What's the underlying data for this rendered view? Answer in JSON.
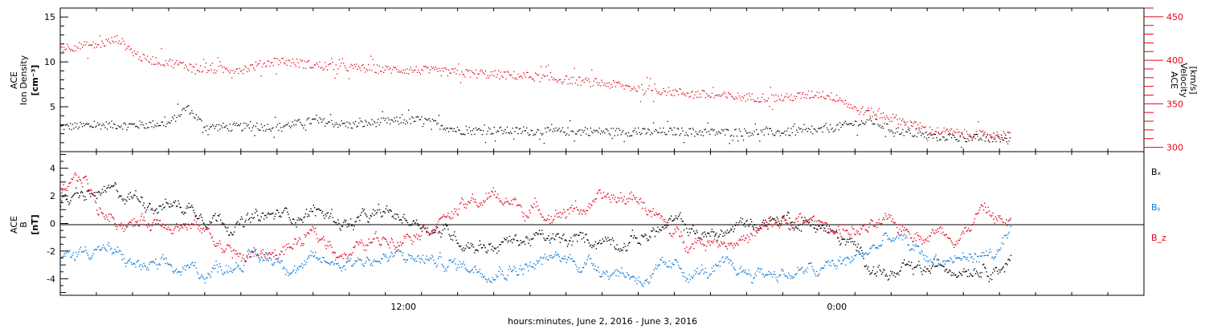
{
  "chart_data": [
    {
      "type": "scatter",
      "ylabel_left": [
        "ACE",
        "Ion Density",
        "[cm⁻³]"
      ],
      "ylabel_right": [
        "ACE",
        "Velocity",
        "[km/s]"
      ],
      "ylim_left": [
        0,
        16
      ],
      "ylim_right": [
        295,
        460
      ],
      "yticks_left": [
        5,
        10,
        15
      ],
      "yticks_right": [
        300,
        350,
        400,
        450
      ],
      "xlabel": "hours:minutes, June  2, 2016 - June  3, 2016",
      "x_tick_labels": [
        "12:00",
        "0:00"
      ],
      "grid": false,
      "series": [
        {
          "name": "",
          "axis": "left",
          "color": "#000000",
          "x_hours": [
            0,
            1,
            2,
            3,
            3.5,
            4,
            5,
            6,
            7,
            8,
            9,
            10,
            11,
            12,
            13,
            14,
            15,
            16,
            17,
            18,
            19,
            20,
            21,
            21.5,
            22,
            22.5,
            23,
            24,
            25,
            26,
            26.3
          ],
          "values": [
            2.8,
            3,
            3,
            3.2,
            5,
            2.8,
            2.8,
            2.8,
            3.5,
            3,
            3.4,
            3.6,
            2.4,
            2.4,
            2.3,
            2.3,
            2.3,
            2.2,
            2.3,
            2.2,
            2.2,
            2.2,
            2.4,
            2.8,
            3.2,
            3.4,
            2.5,
            1.8,
            1.6,
            1.5,
            1.6
          ]
        },
        {
          "name": "",
          "axis": "right",
          "color": "#e8001c",
          "x_hours": [
            0,
            1,
            1.6,
            2,
            2.3,
            3,
            4,
            5,
            6,
            7,
            8,
            9,
            10,
            11,
            12,
            13,
            14,
            15,
            16,
            17,
            18,
            19,
            20,
            21,
            21.6,
            22,
            22.5,
            23,
            24,
            25,
            26,
            26.3
          ],
          "values": [
            415,
            418,
            425,
            410,
            402,
            398,
            390,
            390,
            400,
            395,
            392,
            390,
            389,
            386,
            384,
            382,
            378,
            374,
            368,
            364,
            360,
            358,
            357,
            362,
            356,
            344,
            340,
            335,
            320,
            316,
            314,
            316
          ]
        }
      ]
    },
    {
      "type": "scatter",
      "ylabel": [
        "ACE",
        "B",
        "[nT]"
      ],
      "ylim": [
        -5.2,
        5.2
      ],
      "yticks": [
        -4,
        -2,
        0,
        2,
        4
      ],
      "zero_line": true,
      "grid": false,
      "legend_placement": "right",
      "series": [
        {
          "name": "Bₓ",
          "color": "#000000",
          "x_hours": [
            0,
            1,
            2,
            3,
            4,
            5,
            6,
            7,
            8,
            9,
            10,
            11,
            12,
            13,
            14,
            15,
            16,
            17,
            18,
            19,
            20,
            21,
            22,
            23,
            24,
            25,
            26,
            26.3
          ],
          "values": [
            1.5,
            2,
            2,
            1.5,
            1,
            0,
            0.5,
            1,
            0,
            0.5,
            0.2,
            -1,
            -1.5,
            -1,
            -1.5,
            -1,
            -1,
            0,
            -1,
            0,
            0.5,
            0,
            -2,
            -3.8,
            -3.5,
            -2.8,
            -2.8,
            -2.6
          ]
        },
        {
          "name": "Bᵧ",
          "color": "#0a79d8",
          "x_hours": [
            0,
            1,
            2,
            3,
            4,
            5,
            6,
            7,
            8,
            9,
            10,
            11,
            12,
            13,
            14,
            15,
            16,
            17,
            18,
            19,
            20,
            21,
            22,
            23,
            24,
            25,
            26,
            26.3
          ],
          "values": [
            -2.5,
            -1.5,
            -3,
            -3.5,
            -3.5,
            -2.5,
            -2.5,
            -3,
            -2.5,
            -2.5,
            -2.5,
            -3,
            -3,
            -3,
            -2.5,
            -3,
            -3.8,
            -3.5,
            -3.5,
            -3.5,
            -3.5,
            -3.5,
            -2.5,
            -1,
            -2.5,
            -2.5,
            -2,
            -1
          ]
        },
        {
          "name": "B_z",
          "color": "#e8001c",
          "x_hours": [
            0,
            0.7,
            1,
            2,
            3,
            4,
            5,
            6,
            7,
            8,
            9,
            10,
            11,
            12,
            13,
            14,
            15,
            16,
            17,
            18,
            19,
            20,
            21,
            22,
            23,
            24,
            25,
            25.5,
            26,
            26.3
          ],
          "values": [
            2,
            3.3,
            1,
            0,
            0.5,
            -0.5,
            -2.5,
            -2,
            -1,
            -2,
            -1,
            0,
            1,
            2,
            1,
            1,
            1.5,
            2,
            -1,
            -1,
            -1,
            0,
            0,
            -0.5,
            -0.3,
            -0.5,
            -0.5,
            1,
            0.3,
            0
          ]
        }
      ]
    }
  ]
}
